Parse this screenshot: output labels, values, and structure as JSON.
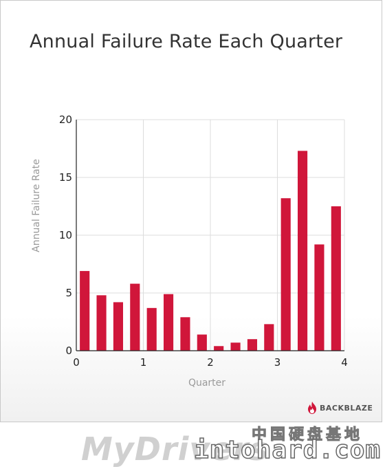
{
  "chart_data": {
    "type": "bar",
    "title": "Annual Failure Rate Each Quarter",
    "xlabel": "Quarter",
    "ylabel": "Annual Failure Rate",
    "xlim": [
      0,
      4
    ],
    "ylim": [
      0,
      20
    ],
    "x_ticks": [
      0,
      1,
      2,
      3,
      4
    ],
    "y_ticks": [
      0,
      5,
      10,
      15,
      20
    ],
    "grid": true,
    "bar_color": "#d0163a",
    "x": [
      0.125,
      0.375,
      0.625,
      0.875,
      1.125,
      1.375,
      1.625,
      1.875,
      2.125,
      2.375,
      2.625,
      2.875,
      3.125,
      3.375,
      3.625,
      3.875
    ],
    "values": [
      6.9,
      4.8,
      4.2,
      5.8,
      3.7,
      4.9,
      2.9,
      1.4,
      0.4,
      0.7,
      1.0,
      2.3,
      13.2,
      17.3,
      9.2,
      12.5
    ]
  },
  "branding": {
    "logo_text": "BACKBLAZE",
    "logo_color": "#d0163a"
  },
  "watermark": {
    "site_name": "MyDrivers",
    "cn_text": "中国硬盘基地",
    "url": "intohard.com"
  }
}
